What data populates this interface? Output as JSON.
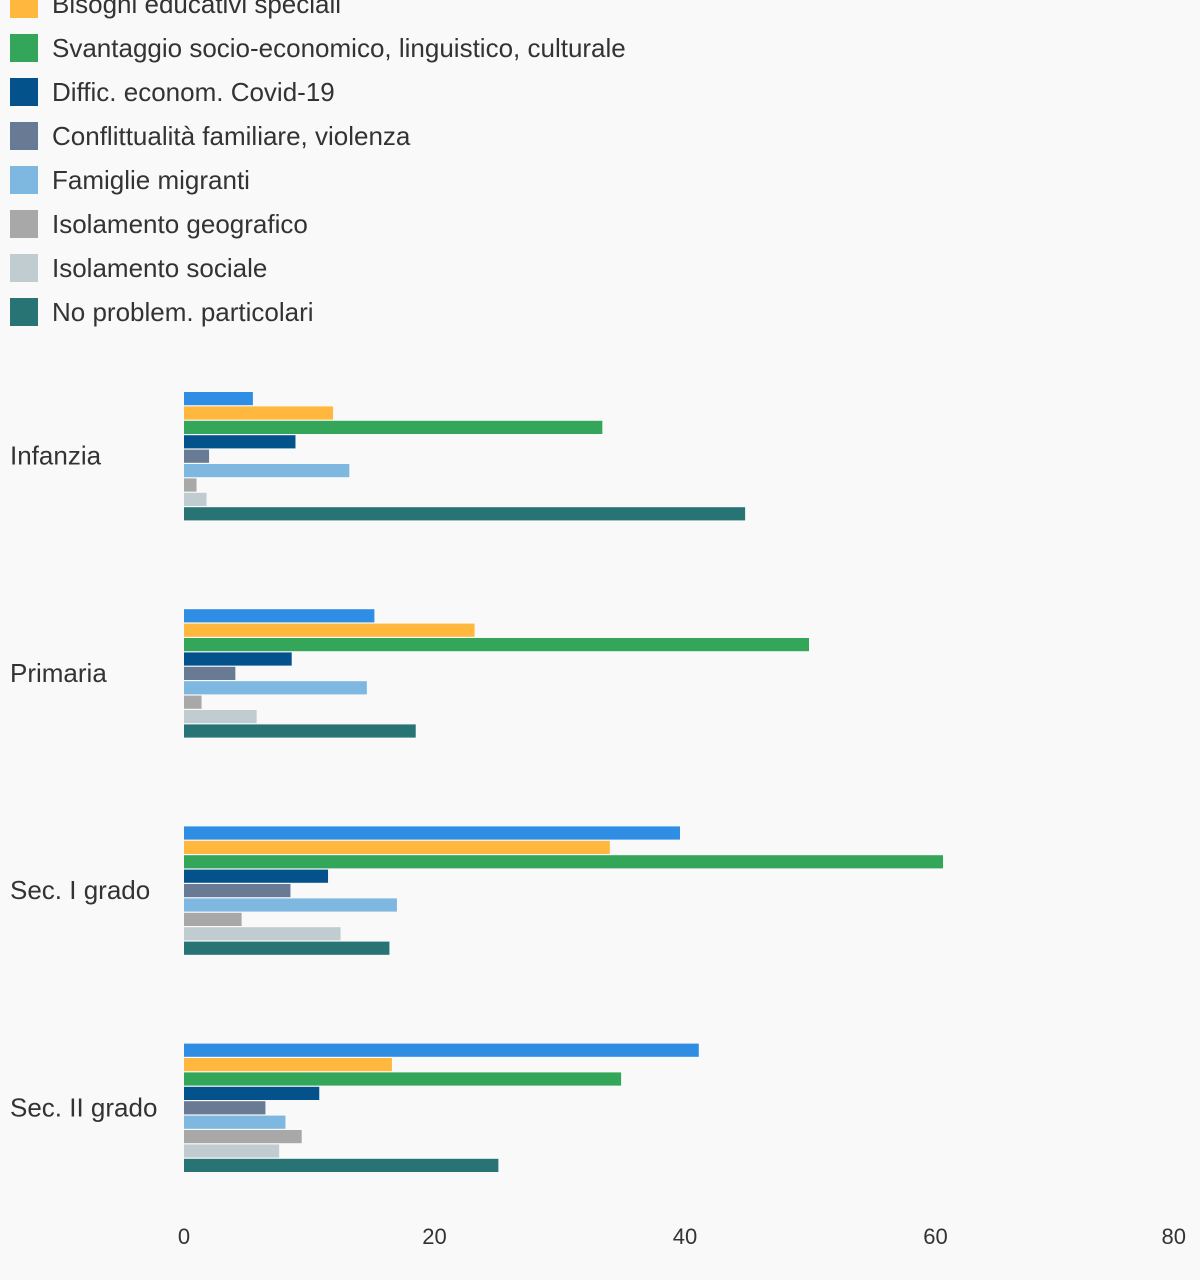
{
  "chart_data": {
    "type": "bar",
    "orientation": "horizontal",
    "title": "",
    "xlabel": "",
    "ylabel": "",
    "xlim": [
      0,
      80
    ],
    "x_ticks": [
      0,
      20,
      40,
      60,
      80
    ],
    "grid": false,
    "legend_position": "top-left",
    "categories": [
      "Infanzia",
      "Primaria",
      "Sec. I grado",
      "Sec. II grado"
    ],
    "series": [
      {
        "name": "Bisogni educativi speciali",
        "color": "#2f8de4",
        "values": [
          5.5,
          15.2,
          39.6,
          41.1
        ]
      },
      {
        "name": "Bisogni educativi speciali",
        "color": "#ffb83d",
        "values": [
          11.9,
          23.2,
          34.0,
          16.6
        ]
      },
      {
        "name": "Svantaggio socio-economico, linguistico, culturale",
        "color": "#34a65a",
        "values": [
          33.4,
          49.9,
          60.6,
          34.9
        ]
      },
      {
        "name": "Diffic. econom. Covid-19",
        "color": "#03528c",
        "values": [
          8.9,
          8.6,
          11.5,
          10.8
        ]
      },
      {
        "name": "Conflittualità familiare, violenza",
        "color": "#687a94",
        "values": [
          2.0,
          4.1,
          8.5,
          6.5
        ]
      },
      {
        "name": "Famiglie migranti",
        "color": "#7eb8e0",
        "values": [
          13.2,
          14.6,
          17.0,
          8.1
        ]
      },
      {
        "name": "Isolamento geografico",
        "color": "#a8a8a8",
        "values": [
          1.0,
          1.4,
          4.6,
          9.4
        ]
      },
      {
        "name": "Isolamento sociale",
        "color": "#c1ccd1",
        "values": [
          1.8,
          5.8,
          12.5,
          7.6
        ]
      },
      {
        "name": "No problem. particolari",
        "color": "#287373",
        "values": [
          44.8,
          18.5,
          16.4,
          25.1
        ]
      }
    ]
  }
}
